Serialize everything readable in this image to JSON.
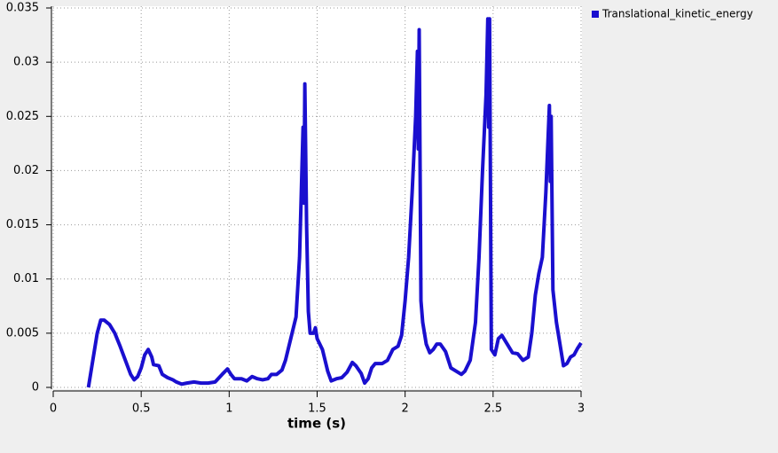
{
  "chart_data": {
    "type": "line",
    "x_label": "time (s)",
    "x": [
      0.2,
      0.22,
      0.25,
      0.27,
      0.29,
      0.32,
      0.35,
      0.38,
      0.41,
      0.44,
      0.46,
      0.48,
      0.5,
      0.52,
      0.54,
      0.56,
      0.57,
      0.6,
      0.62,
      0.65,
      0.68,
      0.7,
      0.73,
      0.76,
      0.8,
      0.84,
      0.88,
      0.92,
      0.96,
      0.99,
      1.01,
      1.03,
      1.07,
      1.1,
      1.13,
      1.16,
      1.19,
      1.22,
      1.24,
      1.27,
      1.3,
      1.32,
      1.35,
      1.38,
      1.4,
      1.41,
      1.42,
      1.425,
      1.43,
      1.44,
      1.45,
      1.46,
      1.48,
      1.49,
      1.5,
      1.53,
      1.56,
      1.58,
      1.61,
      1.64,
      1.67,
      1.7,
      1.72,
      1.75,
      1.77,
      1.79,
      1.81,
      1.83,
      1.87,
      1.9,
      1.93,
      1.96,
      1.98,
      2.0,
      2.02,
      2.04,
      2.06,
      2.07,
      2.075,
      2.08,
      2.09,
      2.1,
      2.12,
      2.14,
      2.16,
      2.18,
      2.2,
      2.23,
      2.26,
      2.29,
      2.32,
      2.34,
      2.37,
      2.4,
      2.42,
      2.44,
      2.46,
      2.47,
      2.475,
      2.48,
      2.49,
      2.51,
      2.53,
      2.55,
      2.58,
      2.61,
      2.64,
      2.67,
      2.7,
      2.72,
      2.74,
      2.76,
      2.78,
      2.8,
      2.82,
      2.825,
      2.83,
      2.84,
      2.86,
      2.88,
      2.9,
      2.92,
      2.94,
      2.96,
      2.98,
      3.0
    ],
    "series": [
      {
        "name": "Translational_kinetic_energy",
        "color": "#1a0fcf",
        "values": [
          0.0,
          0.002,
          0.005,
          0.0062,
          0.0062,
          0.0058,
          0.005,
          0.0038,
          0.0025,
          0.0012,
          0.0007,
          0.001,
          0.0018,
          0.003,
          0.0035,
          0.0028,
          0.0021,
          0.002,
          0.0012,
          0.0009,
          0.0007,
          0.0005,
          0.0003,
          0.0004,
          0.0005,
          0.0004,
          0.0004,
          0.0005,
          0.0012,
          0.0017,
          0.0012,
          0.0008,
          0.0008,
          0.0006,
          0.001,
          0.0008,
          0.0007,
          0.0008,
          0.0012,
          0.0012,
          0.0016,
          0.0025,
          0.0045,
          0.0065,
          0.012,
          0.018,
          0.024,
          0.017,
          0.028,
          0.015,
          0.007,
          0.005,
          0.005,
          0.0055,
          0.0045,
          0.0035,
          0.0015,
          0.0006,
          0.0008,
          0.0009,
          0.0014,
          0.0023,
          0.002,
          0.0013,
          0.0004,
          0.0008,
          0.0018,
          0.0022,
          0.0022,
          0.0025,
          0.0035,
          0.0038,
          0.0048,
          0.008,
          0.012,
          0.018,
          0.025,
          0.031,
          0.022,
          0.033,
          0.008,
          0.006,
          0.004,
          0.0032,
          0.0035,
          0.004,
          0.004,
          0.0033,
          0.0018,
          0.0015,
          0.0012,
          0.0015,
          0.0025,
          0.006,
          0.012,
          0.02,
          0.027,
          0.034,
          0.024,
          0.034,
          0.0035,
          0.003,
          0.0045,
          0.0048,
          0.004,
          0.0032,
          0.0031,
          0.0025,
          0.0028,
          0.005,
          0.0085,
          0.0105,
          0.012,
          0.018,
          0.026,
          0.019,
          0.025,
          0.009,
          0.006,
          0.004,
          0.002,
          0.0022,
          0.0028,
          0.003,
          0.0036,
          0.0041
        ]
      }
    ],
    "xlim": [
      0,
      3
    ],
    "xticks": [
      0,
      0.5,
      1,
      1.5,
      2,
      2.5,
      3
    ],
    "ylim": [
      0,
      0.035
    ],
    "yticks": [
      0,
      0.005,
      0.01,
      0.015,
      0.02,
      0.025,
      0.03,
      0.035
    ],
    "grid": true,
    "legend": "top-right"
  }
}
